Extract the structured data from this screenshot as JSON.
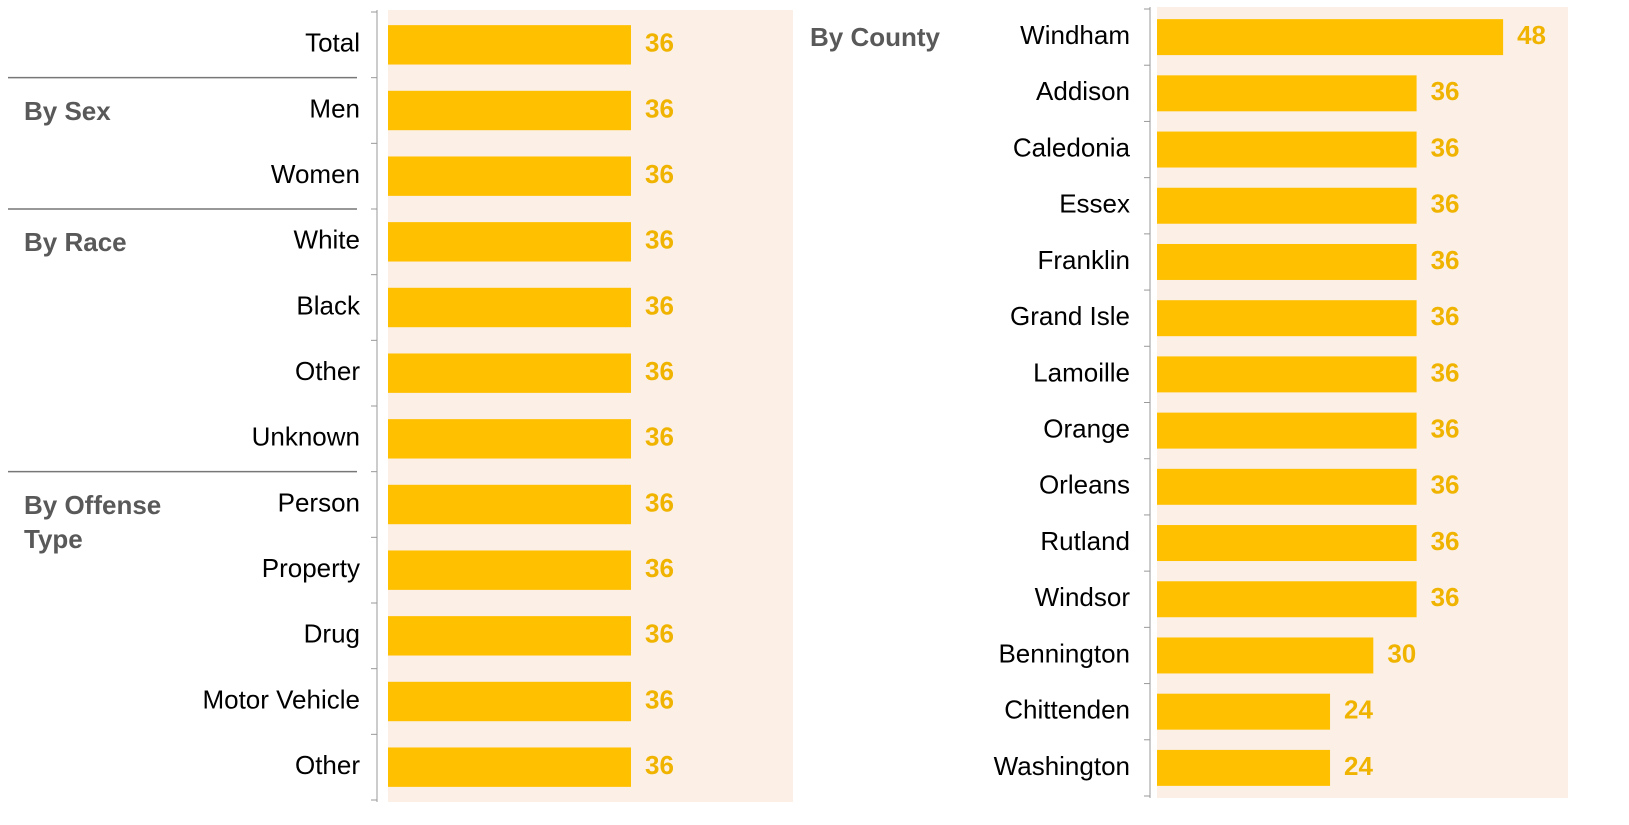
{
  "chart_data": [
    {
      "type": "bar",
      "orientation": "horizontal",
      "categories": [
        "Total",
        "Men",
        "Women",
        "White",
        "Black",
        "Other",
        "Unknown",
        "Person",
        "Property",
        "Drug",
        "Motor Vehicle",
        "Other"
      ],
      "group_labels": [
        null,
        "By Sex",
        null,
        "By Race",
        null,
        null,
        null,
        "By Offense Type",
        null,
        null,
        null,
        null
      ],
      "values": [
        36,
        36,
        36,
        36,
        36,
        36,
        36,
        36,
        36,
        36,
        36,
        36
      ],
      "color": "#ffc000",
      "label_color": "#f0b400",
      "background": "#fcefe6",
      "xlim": [
        0,
        60
      ]
    },
    {
      "type": "bar",
      "orientation": "horizontal",
      "categories": [
        "Windham",
        "Addison",
        "Caledonia",
        "Essex",
        "Franklin",
        "Grand Isle",
        "Lamoille",
        "Orange",
        "Orleans",
        "Rutland",
        "Windsor",
        "Bennington",
        "Chittenden",
        "Washington"
      ],
      "group_labels": [
        "By County",
        null,
        null,
        null,
        null,
        null,
        null,
        null,
        null,
        null,
        null,
        null,
        null,
        null
      ],
      "values": [
        48,
        36,
        36,
        36,
        36,
        36,
        36,
        36,
        36,
        36,
        36,
        30,
        24,
        24
      ],
      "color": "#ffc000",
      "label_color": "#f0b400",
      "background": "#fcefe6",
      "xlim": [
        0,
        57
      ]
    }
  ]
}
